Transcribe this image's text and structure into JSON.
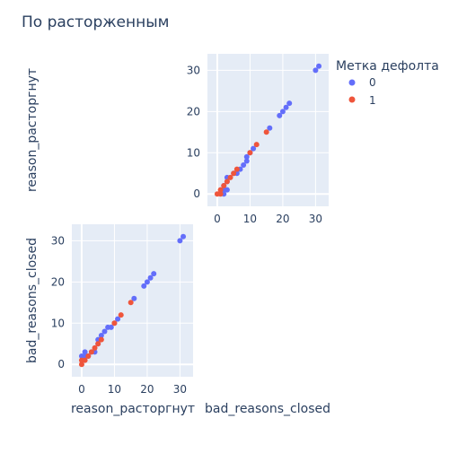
{
  "title": "По расторженным",
  "colors": {
    "plot_bg": "#E5ECF6",
    "grid": "#ffffff",
    "text": "#2a3f5f",
    "series_0": "#636EFA",
    "series_1": "#EF553B"
  },
  "chart_data": {
    "type": "scatter",
    "kind": "scatter-matrix",
    "title": "По расторженным",
    "legend": {
      "title": "Метка дефолта",
      "placement": "top-right",
      "entries": [
        "0",
        "1"
      ]
    },
    "dimensions": [
      "reason_расторгнут",
      "bad_reasons_closed"
    ],
    "axis_range": [
      -3,
      34
    ],
    "ticks": [
      0,
      10,
      20,
      30
    ],
    "diagonal_visible": false,
    "panels": [
      {
        "position": "top-right",
        "xlabel": "bad_reasons_closed",
        "ylabel": "reason_расторгнут",
        "show_x_tick_labels": true,
        "show_y_tick_labels": true
      },
      {
        "position": "bottom-left",
        "xlabel": "reason_расторгнут",
        "ylabel": "bad_reasons_closed",
        "show_x_tick_labels": true,
        "show_y_tick_labels": true
      }
    ],
    "series": [
      {
        "name": "0",
        "color": "#636EFA",
        "points": [
          {
            "reason": 0,
            "bad": 2
          },
          {
            "reason": 1,
            "bad": 2
          },
          {
            "reason": 1,
            "bad": 3
          },
          {
            "reason": 2,
            "bad": 2
          },
          {
            "reason": 3,
            "bad": 3
          },
          {
            "reason": 4,
            "bad": 3
          },
          {
            "reason": 5,
            "bad": 6
          },
          {
            "reason": 5,
            "bad": 5
          },
          {
            "reason": 6,
            "bad": 7
          },
          {
            "reason": 7,
            "bad": 8
          },
          {
            "reason": 8,
            "bad": 9
          },
          {
            "reason": 9,
            "bad": 9
          },
          {
            "reason": 10,
            "bad": 10
          },
          {
            "reason": 11,
            "bad": 11
          },
          {
            "reason": 16,
            "bad": 16
          },
          {
            "reason": 19,
            "bad": 19
          },
          {
            "reason": 20,
            "bad": 20
          },
          {
            "reason": 21,
            "bad": 21
          },
          {
            "reason": 22,
            "bad": 22
          },
          {
            "reason": 30,
            "bad": 30
          },
          {
            "reason": 31,
            "bad": 31
          }
        ]
      },
      {
        "name": "1",
        "color": "#EF553B",
        "points": [
          {
            "reason": 0,
            "bad": 0
          },
          {
            "reason": 0,
            "bad": 1
          },
          {
            "reason": 1,
            "bad": 1
          },
          {
            "reason": 2,
            "bad": 2
          },
          {
            "reason": 3,
            "bad": 3
          },
          {
            "reason": 4,
            "bad": 4
          },
          {
            "reason": 5,
            "bad": 5
          },
          {
            "reason": 6,
            "bad": 6
          },
          {
            "reason": 10,
            "bad": 10
          },
          {
            "reason": 12,
            "bad": 12
          },
          {
            "reason": 15,
            "bad": 15
          }
        ]
      }
    ]
  }
}
